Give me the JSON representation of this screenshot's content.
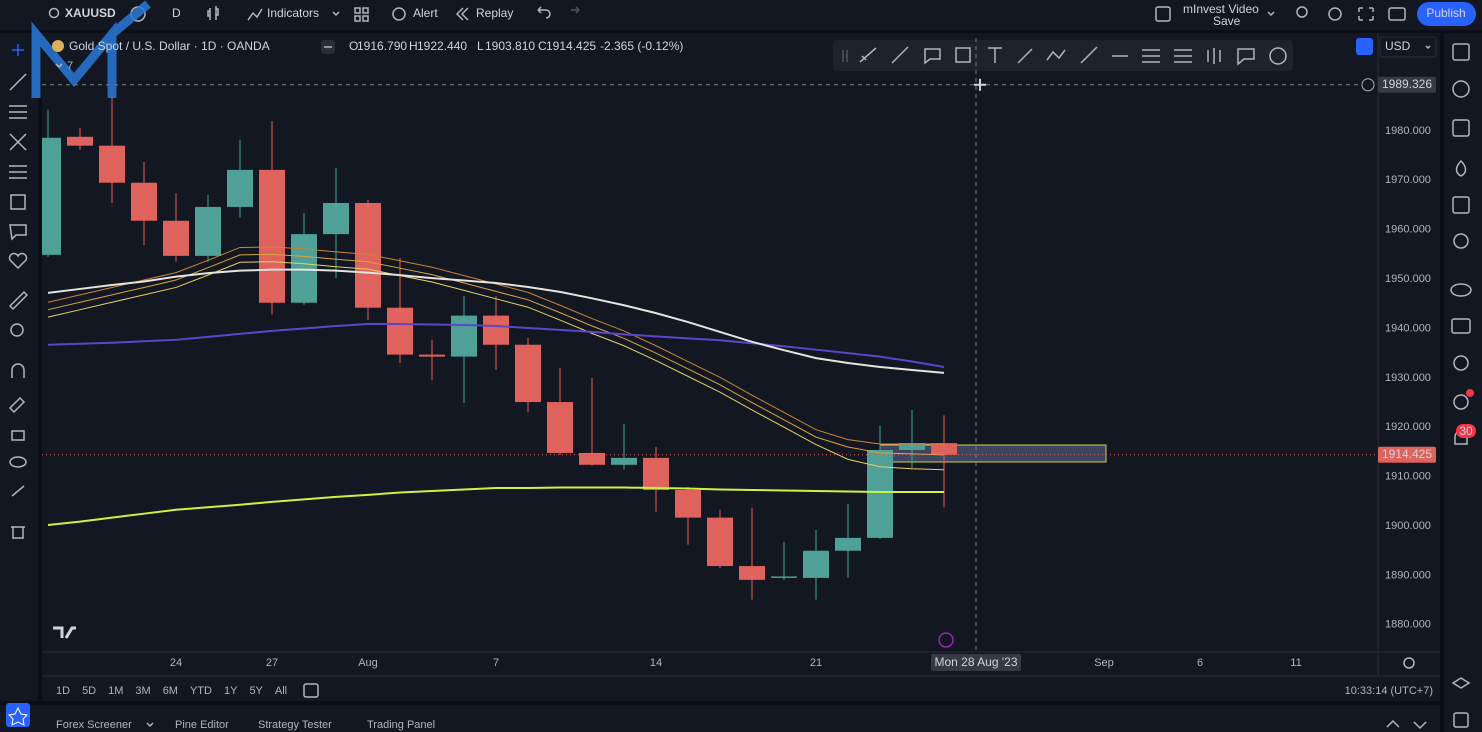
{
  "toolbar": {
    "symbol": "XAUUSD",
    "interval": "D",
    "indicators": "Indicators",
    "alert": "Alert",
    "replay": "Replay",
    "layout_name": "mInvest Video",
    "save": "Save",
    "publish": "Publish"
  },
  "legend": {
    "title": "Gold Spot / U.S. Dollar · 1D · OANDA",
    "ohlc": [
      {
        "key": "O",
        "value": "1916.790"
      },
      {
        "key": "H",
        "value": "1922.440"
      },
      {
        "key": "L",
        "value": "1903.810"
      },
      {
        "key": "C",
        "value": "1914.425"
      }
    ],
    "change": "-2.365 (-0.12%)",
    "indicator_count": "7"
  },
  "currency": "USD",
  "ranges": [
    "1D",
    "5D",
    "1M",
    "3M",
    "6M",
    "YTD",
    "1Y",
    "5Y",
    "All"
  ],
  "clock": "10:33:14 (UTC+7)",
  "bottom_tabs": [
    "Forex Screener",
    "Pine Editor",
    "Strategy Tester",
    "Trading Panel"
  ],
  "notifications": "30",
  "chart_data": {
    "type": "candlestick",
    "x": [
      "2023-07-18",
      "2023-07-19",
      "2023-07-20",
      "2023-07-21",
      "2023-07-24",
      "2023-07-25",
      "2023-07-26",
      "2023-07-27",
      "2023-07-28",
      "2023-07-31",
      "2023-08-01",
      "2023-08-02",
      "2023-08-03",
      "2023-08-04",
      "2023-08-07",
      "2023-08-08",
      "2023-08-09",
      "2023-08-10",
      "2023-08-11",
      "2023-08-14",
      "2023-08-15",
      "2023-08-16",
      "2023-08-17",
      "2023-08-18",
      "2023-08-21",
      "2023-08-22",
      "2023-08-23",
      "2023-08-24",
      "2023-08-25"
    ],
    "open": [
      1954.9,
      1978.8,
      1977.0,
      1969.5,
      1961.8,
      1954.7,
      1964.6,
      1972.1,
      1945.2,
      1959.1,
      1965.4,
      1944.2,
      1934.7,
      1934.3,
      1942.6,
      1936.7,
      1925.1,
      1914.8,
      1912.4,
      1913.8,
      1907.3,
      1901.7,
      1891.9,
      1889.5,
      1889.5,
      1895.0,
      1897.6,
      1915.4,
      1916.79
    ],
    "high": [
      1984.3,
      1980.6,
      1987.3,
      1973.7,
      1967.4,
      1967.0,
      1978.2,
      1982.0,
      1963.4,
      1972.5,
      1966.0,
      1954.3,
      1937.7,
      1946.6,
      1946.6,
      1938.1,
      1932.0,
      1930.0,
      1920.7,
      1916.0,
      1907.9,
      1903.3,
      1903.7,
      1896.8,
      1899.2,
      1904.5,
      1920.3,
      1923.5,
      1922.44
    ],
    "low": [
      1954.5,
      1976.2,
      1965.4,
      1956.9,
      1953.5,
      1953.5,
      1962.4,
      1942.8,
      1944.8,
      1950.2,
      1941.7,
      1933.0,
      1929.6,
      1924.9,
      1931.6,
      1923.1,
      1914.4,
      1912.2,
      1911.4,
      1902.9,
      1896.2,
      1891.5,
      1885.1,
      1889.1,
      1885.1,
      1889.5,
      1897.4,
      1911.8,
      1903.81
    ],
    "close": [
      1978.6,
      1977.0,
      1969.5,
      1961.8,
      1954.7,
      1964.6,
      1972.1,
      1945.2,
      1959.1,
      1965.4,
      1944.2,
      1934.7,
      1934.3,
      1942.6,
      1936.7,
      1925.1,
      1914.8,
      1912.4,
      1913.8,
      1907.3,
      1901.7,
      1891.9,
      1889.1,
      1889.8,
      1895.0,
      1897.6,
      1915.4,
      1916.8,
      1914.425
    ],
    "up_color": "#4fa197",
    "down_color": "#e0625c",
    "lines": [
      {
        "color": "#c9853c",
        "width": 1,
        "values": [
          1945.3,
          1946.8,
          1948.3,
          1949.8,
          1951.3,
          1953.8,
          1956.4,
          1956.5,
          1956.1,
          1955.5,
          1955.0,
          1953.7,
          1952.4,
          1950.7,
          1949.0,
          1947.3,
          1944.7,
          1942.0,
          1939.5,
          1936.5,
          1933.3,
          1930.1,
          1926.5,
          1923.0,
          1919.5,
          1917.5,
          1916.6,
          1916.6,
          1916.6
        ]
      },
      {
        "color": "#d9a441",
        "width": 1,
        "values": [
          1943.8,
          1945.3,
          1946.8,
          1948.3,
          1949.8,
          1952.3,
          1954.9,
          1955.0,
          1954.6,
          1954.0,
          1953.5,
          1952.2,
          1950.9,
          1949.2,
          1947.5,
          1945.8,
          1943.2,
          1940.5,
          1938.0,
          1935.0,
          1931.8,
          1928.6,
          1925.0,
          1921.5,
          1918.0,
          1916.0,
          1914.8,
          1914.6,
          1914.4
        ]
      },
      {
        "color": "#e6d264",
        "width": 1,
        "values": [
          1942.3,
          1943.8,
          1945.3,
          1946.8,
          1948.3,
          1950.8,
          1953.4,
          1953.5,
          1953.1,
          1952.5,
          1952.0,
          1950.7,
          1949.4,
          1947.7,
          1946.0,
          1944.3,
          1941.7,
          1939.0,
          1936.5,
          1933.5,
          1930.3,
          1927.1,
          1923.5,
          1920.0,
          1916.5,
          1913.5,
          1912.0,
          1911.6,
          1911.4
        ]
      },
      {
        "color": "#5b46c9",
        "width": 2,
        "values": [
          1936.7,
          1936.9,
          1937.1,
          1937.4,
          1937.7,
          1938.3,
          1938.9,
          1939.5,
          1940.0,
          1940.5,
          1940.9,
          1940.9,
          1940.8,
          1940.7,
          1940.5,
          1940.1,
          1939.7,
          1939.3,
          1938.8,
          1938.4,
          1938.0,
          1937.6,
          1937.0,
          1936.4,
          1935.7,
          1935.0,
          1934.3,
          1933.3,
          1932.2
        ]
      },
      {
        "color": "#e6e3df",
        "width": 2,
        "values": [
          1947.2,
          1948.0,
          1948.8,
          1949.5,
          1950.5,
          1951.2,
          1951.7,
          1951.9,
          1951.9,
          1951.7,
          1951.3,
          1950.8,
          1950.2,
          1949.7,
          1949.2,
          1948.4,
          1947.4,
          1946.1,
          1944.7,
          1943.1,
          1941.3,
          1939.3,
          1937.3,
          1935.6,
          1934.0,
          1933.0,
          1932.2,
          1931.6,
          1931.0
        ]
      },
      {
        "color": "#c8f542",
        "width": 2,
        "values": [
          1900.2,
          1900.9,
          1901.7,
          1902.5,
          1903.3,
          1903.8,
          1904.3,
          1904.9,
          1905.4,
          1905.9,
          1906.3,
          1906.8,
          1907.1,
          1907.4,
          1907.7,
          1907.7,
          1907.8,
          1907.8,
          1907.8,
          1907.7,
          1907.6,
          1907.4,
          1907.3,
          1907.2,
          1907.1,
          1907.0,
          1906.9,
          1906.9,
          1906.9
        ]
      }
    ],
    "ylim": [
      1874.5,
      1998.8
    ],
    "yticks": [
      {
        "value": 1880,
        "label": "1880.000"
      },
      {
        "value": 1890,
        "label": "1890.000"
      },
      {
        "value": 1900,
        "label": "1900.000"
      },
      {
        "value": 1910,
        "label": "1910.000"
      },
      {
        "value": 1920,
        "label": "1920.000"
      },
      {
        "value": 1930,
        "label": "1930.000"
      },
      {
        "value": 1940,
        "label": "1940.000"
      },
      {
        "value": 1950,
        "label": "1950.000"
      },
      {
        "value": 1960,
        "label": "1960.000"
      },
      {
        "value": 1970,
        "label": "1970.000"
      },
      {
        "value": 1980,
        "label": "1980.000"
      }
    ],
    "xticks": [
      {
        "value": "2023-07-24",
        "label": "24"
      },
      {
        "value": "2023-07-27",
        "label": "27"
      },
      {
        "value": "2023-08-01",
        "label": "Aug"
      },
      {
        "value": "2023-08-07",
        "label": "7"
      },
      {
        "value": "2023-08-14",
        "label": "14"
      },
      {
        "value": "2023-08-21",
        "label": "21"
      },
      {
        "value": "2023-09-01",
        "label": "Sep"
      },
      {
        "value": "2023-09-06",
        "label": "6"
      },
      {
        "value": "2023-09-11",
        "label": "11"
      }
    ],
    "grid": false,
    "crosshair": {
      "x": {
        "value": "2023-08-28",
        "label": "Mon 28 Aug '23"
      },
      "y": {
        "value": 1989.326,
        "label": "1989.326"
      }
    },
    "last_price": {
      "value": 1914.425,
      "label": "1914.425",
      "color": "#e0625c"
    }
  }
}
